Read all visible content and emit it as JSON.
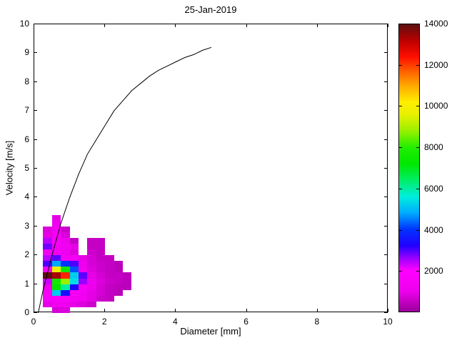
{
  "figure": {
    "background": "#ffffff",
    "frame_color": "#000000"
  },
  "chart_data": {
    "type": "heatmap",
    "title": "25-Jan-2019",
    "xlabel": "Diameter [mm]",
    "ylabel": "Velocity [m/s]",
    "xlim": [
      0,
      10
    ],
    "ylim": [
      0,
      10
    ],
    "x_ticks": [
      0,
      2,
      4,
      6,
      8,
      10
    ],
    "y_ticks": [
      0,
      1,
      2,
      3,
      4,
      5,
      6,
      7,
      8,
      9,
      10
    ],
    "grid": false,
    "legend_position": "none",
    "cells_format": "[diameter_mm_left_edge, velocity_ms_bottom_edge, count]",
    "cell_size": {
      "d": 0.25,
      "v": 0.2
    },
    "cells": [
      [
        0.5,
        3.2,
        900
      ],
      [
        0.5,
        3.0,
        1100
      ],
      [
        0.25,
        2.8,
        800
      ],
      [
        0.5,
        2.8,
        1400
      ],
      [
        0.75,
        2.8,
        600
      ],
      [
        0.25,
        2.6,
        900
      ],
      [
        0.5,
        2.6,
        1500
      ],
      [
        0.75,
        2.6,
        800
      ],
      [
        0.25,
        2.4,
        2400
      ],
      [
        0.5,
        2.4,
        1500
      ],
      [
        0.75,
        2.4,
        1000
      ],
      [
        1.0,
        2.4,
        500
      ],
      [
        1.5,
        2.4,
        500
      ],
      [
        1.75,
        2.4,
        500
      ],
      [
        0.25,
        2.2,
        2800
      ],
      [
        0.5,
        2.2,
        1400
      ],
      [
        0.75,
        2.2,
        1200
      ],
      [
        1.0,
        2.2,
        900
      ],
      [
        1.5,
        2.2,
        500
      ],
      [
        1.75,
        2.2,
        500
      ],
      [
        0.25,
        2.0,
        1200
      ],
      [
        0.5,
        2.0,
        1300
      ],
      [
        0.75,
        2.0,
        1100
      ],
      [
        1.0,
        2.0,
        800
      ],
      [
        1.5,
        2.0,
        600
      ],
      [
        1.75,
        2.0,
        500
      ],
      [
        0.25,
        1.8,
        2400
      ],
      [
        0.5,
        1.8,
        2900
      ],
      [
        0.75,
        1.8,
        1300
      ],
      [
        1.0,
        1.8,
        1400
      ],
      [
        1.25,
        1.8,
        900
      ],
      [
        1.5,
        1.8,
        700
      ],
      [
        1.75,
        1.8,
        500
      ],
      [
        2.0,
        1.8,
        500
      ],
      [
        0.25,
        1.6,
        3000
      ],
      [
        0.5,
        1.6,
        4800
      ],
      [
        0.75,
        1.6,
        4000
      ],
      [
        1.0,
        1.6,
        3000
      ],
      [
        1.25,
        1.6,
        1000
      ],
      [
        1.5,
        1.6,
        700
      ],
      [
        1.75,
        1.6,
        600
      ],
      [
        2.0,
        1.6,
        500
      ],
      [
        2.25,
        1.6,
        400
      ],
      [
        0.25,
        1.4,
        1500
      ],
      [
        0.5,
        1.4,
        9800
      ],
      [
        0.75,
        1.4,
        7500
      ],
      [
        1.0,
        1.4,
        4200
      ],
      [
        1.25,
        1.4,
        1300
      ],
      [
        1.5,
        1.4,
        800
      ],
      [
        1.75,
        1.4,
        600
      ],
      [
        2.0,
        1.4,
        500
      ],
      [
        2.25,
        1.4,
        400
      ],
      [
        0.25,
        1.2,
        14000
      ],
      [
        0.5,
        1.2,
        13400
      ],
      [
        0.75,
        1.2,
        12200
      ],
      [
        1.0,
        1.2,
        5200
      ],
      [
        1.25,
        1.2,
        2900
      ],
      [
        1.5,
        1.2,
        900
      ],
      [
        1.75,
        1.2,
        700
      ],
      [
        2.0,
        1.2,
        500
      ],
      [
        2.25,
        1.2,
        500
      ],
      [
        2.5,
        1.2,
        400
      ],
      [
        0.25,
        1.0,
        2300
      ],
      [
        0.5,
        1.0,
        7600
      ],
      [
        0.75,
        1.0,
        8800
      ],
      [
        1.0,
        1.0,
        5400
      ],
      [
        1.25,
        1.0,
        2600
      ],
      [
        1.5,
        1.0,
        1000
      ],
      [
        1.75,
        1.0,
        800
      ],
      [
        2.0,
        1.0,
        600
      ],
      [
        2.25,
        1.0,
        500
      ],
      [
        2.5,
        1.0,
        400
      ],
      [
        0.25,
        0.8,
        1300
      ],
      [
        0.5,
        0.8,
        7200
      ],
      [
        0.75,
        0.8,
        6000
      ],
      [
        1.0,
        0.8,
        3300
      ],
      [
        1.25,
        0.8,
        1400
      ],
      [
        1.5,
        0.8,
        1000
      ],
      [
        1.75,
        0.8,
        700
      ],
      [
        2.0,
        0.8,
        500
      ],
      [
        2.25,
        0.8,
        400
      ],
      [
        2.5,
        0.8,
        400
      ],
      [
        0.25,
        0.6,
        1400
      ],
      [
        0.5,
        0.6,
        5200
      ],
      [
        0.75,
        0.6,
        3400
      ],
      [
        1.0,
        0.6,
        1500
      ],
      [
        1.25,
        0.6,
        1200
      ],
      [
        1.5,
        0.6,
        900
      ],
      [
        1.75,
        0.6,
        700
      ],
      [
        2.0,
        0.6,
        500
      ],
      [
        2.25,
        0.6,
        400
      ],
      [
        0.25,
        0.4,
        1500
      ],
      [
        0.5,
        0.4,
        1600
      ],
      [
        0.75,
        0.4,
        1500
      ],
      [
        1.0,
        0.4,
        1300
      ],
      [
        1.25,
        0.4,
        1200
      ],
      [
        1.5,
        0.4,
        900
      ],
      [
        1.75,
        0.4,
        600
      ],
      [
        2.0,
        0.4,
        500
      ],
      [
        0.25,
        0.2,
        900
      ],
      [
        0.5,
        0.2,
        1200
      ],
      [
        0.75,
        0.2,
        1100
      ],
      [
        1.0,
        0.2,
        900
      ],
      [
        1.25,
        0.2,
        800
      ],
      [
        1.5,
        0.2,
        600
      ],
      [
        0.5,
        0.0,
        700
      ],
      [
        0.75,
        0.0,
        800
      ]
    ],
    "curve": {
      "name": "terminal-velocity-curve",
      "color": "#000000",
      "points_format": "[diameter_mm, velocity_ms]",
      "points": [
        [
          0.11,
          0.0
        ],
        [
          0.25,
          0.8
        ],
        [
          0.5,
          2.0
        ],
        [
          0.75,
          3.1
        ],
        [
          1.0,
          4.0
        ],
        [
          1.25,
          4.8
        ],
        [
          1.5,
          5.5
        ],
        [
          1.75,
          6.0
        ],
        [
          2.0,
          6.5
        ],
        [
          2.25,
          7.0
        ],
        [
          2.5,
          7.35
        ],
        [
          2.75,
          7.7
        ],
        [
          3.0,
          7.95
        ],
        [
          3.25,
          8.2
        ],
        [
          3.5,
          8.4
        ],
        [
          3.75,
          8.55
        ],
        [
          4.0,
          8.7
        ],
        [
          4.25,
          8.85
        ],
        [
          4.5,
          8.95
        ],
        [
          4.75,
          9.1
        ],
        [
          5.0,
          9.2
        ]
      ]
    },
    "colorbar": {
      "min": 0,
      "max": 14000,
      "ticks": [
        2000,
        4000,
        6000,
        8000,
        10000,
        12000,
        14000
      ],
      "position": "right",
      "colormap": [
        [
          0,
          "#990099"
        ],
        [
          1000,
          "#ee00ee"
        ],
        [
          2000,
          "#ff00ff"
        ],
        [
          2600,
          "#9900ff"
        ],
        [
          3200,
          "#2200ff"
        ],
        [
          4000,
          "#0033ff"
        ],
        [
          4800,
          "#00aaff"
        ],
        [
          5600,
          "#00eedd"
        ],
        [
          6400,
          "#00ee66"
        ],
        [
          7200,
          "#00e800"
        ],
        [
          8000,
          "#22ee00"
        ],
        [
          8800,
          "#99f000"
        ],
        [
          9600,
          "#e8f000"
        ],
        [
          10200,
          "#ffee00"
        ],
        [
          11000,
          "#ffaa00"
        ],
        [
          11800,
          "#ff5500"
        ],
        [
          12400,
          "#ff0f00"
        ],
        [
          13200,
          "#bb0000"
        ],
        [
          14000,
          "#5e0f0f"
        ]
      ]
    }
  }
}
